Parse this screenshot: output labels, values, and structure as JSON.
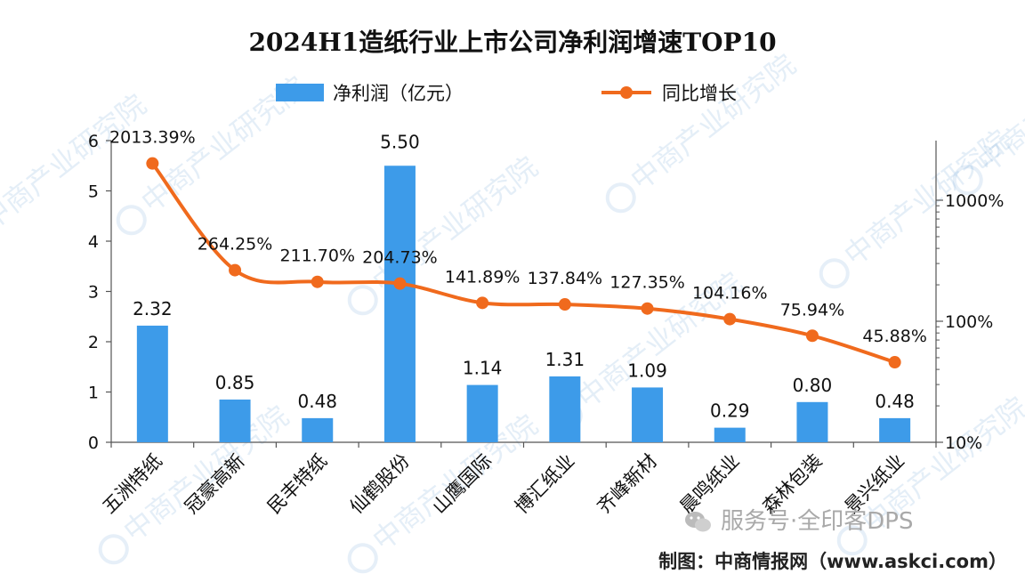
{
  "chart_data": {
    "type": "bar",
    "title": "2024H1造纸行业上市公司净利润增速TOP10",
    "categories": [
      "五洲特纸",
      "冠豪高新",
      "民丰特纸",
      "仙鹤股份",
      "山鹰国际",
      "博汇纸业",
      "齐峰新材",
      "晨鸣纸业",
      "森林包装",
      "景兴纸业"
    ],
    "series": [
      {
        "name": "净利润（亿元）",
        "type": "bar",
        "axis": "left",
        "color": "#3d9be9",
        "values": [
          2.32,
          0.85,
          0.48,
          5.5,
          1.14,
          1.31,
          1.09,
          0.29,
          0.8,
          0.48
        ],
        "labels": [
          "2.32",
          "0.85",
          "0.48",
          "5.50",
          "1.14",
          "1.31",
          "1.09",
          "0.29",
          "0.80",
          "0.48"
        ]
      },
      {
        "name": "同比增长",
        "type": "line",
        "axis": "right",
        "color": "#f06a1d",
        "values": [
          2013.39,
          264.25,
          211.7,
          204.73,
          141.89,
          137.84,
          127.35,
          104.16,
          75.94,
          45.88
        ],
        "labels": [
          "2013.39%",
          "264.25%",
          "211.70%",
          "204.73%",
          "141.89%",
          "137.84%",
          "127.35%",
          "104.16%",
          "75.94%",
          "45.88%"
        ]
      }
    ],
    "y_left": {
      "min": 0,
      "max": 6,
      "ticks": [
        "0",
        "1",
        "2",
        "3",
        "4",
        "5",
        "6"
      ]
    },
    "y_right": {
      "scale": "log",
      "min": 10,
      "max": 1000,
      "ticks": [
        "10%",
        "100%",
        "1000%"
      ]
    },
    "legend_position": "top"
  },
  "footer": {
    "source": "制图：中商情报网（www.askci.com）",
    "account": "服务号·全印客DPS"
  },
  "watermark": {
    "text": "中商产业研究院"
  },
  "colors": {
    "bar": "#3d9be9",
    "line": "#f06a1d",
    "axis": "#555555",
    "watermark": "#2e7cc4"
  }
}
